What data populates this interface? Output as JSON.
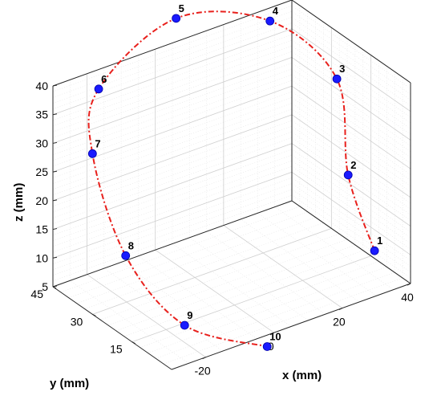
{
  "chart_data": {
    "type": "scatter",
    "subtype": "3d-line-with-markers",
    "xlabel": "x (mm)",
    "ylabel": "y (mm)",
    "zlabel": "z (mm)",
    "x_ticks": [
      "-20",
      "0",
      "20",
      "40"
    ],
    "y_ticks": [
      "15",
      "30",
      "45"
    ],
    "z_ticks": [
      "5",
      "10",
      "15",
      "20",
      "25",
      "30",
      "35",
      "40"
    ],
    "grid": true,
    "line_color": "#e8201c",
    "line_style": "dash-dot",
    "marker_color": "#1a1aff",
    "points": [
      {
        "label": "1",
        "x": 31,
        "y": 2,
        "z": 12
      },
      {
        "label": "2",
        "x": 31,
        "y": 12,
        "z": 22
      },
      {
        "label": "3",
        "x": 30,
        "y": 15,
        "z": 38
      },
      {
        "label": "4",
        "x": 22,
        "y": 30,
        "z": 45
      },
      {
        "label": "5",
        "x": 3,
        "y": 41,
        "z": 46
      },
      {
        "label": "6",
        "x": -22,
        "y": 38,
        "z": 40
      },
      {
        "label": "7",
        "x": -30,
        "y": 30,
        "z": 33
      },
      {
        "label": "8",
        "x": -28,
        "y": 20,
        "z": 18
      },
      {
        "label": "9",
        "x": -20,
        "y": 8,
        "z": 8
      },
      {
        "label": "10",
        "x": -2,
        "y": 0,
        "z": 3
      }
    ]
  }
}
